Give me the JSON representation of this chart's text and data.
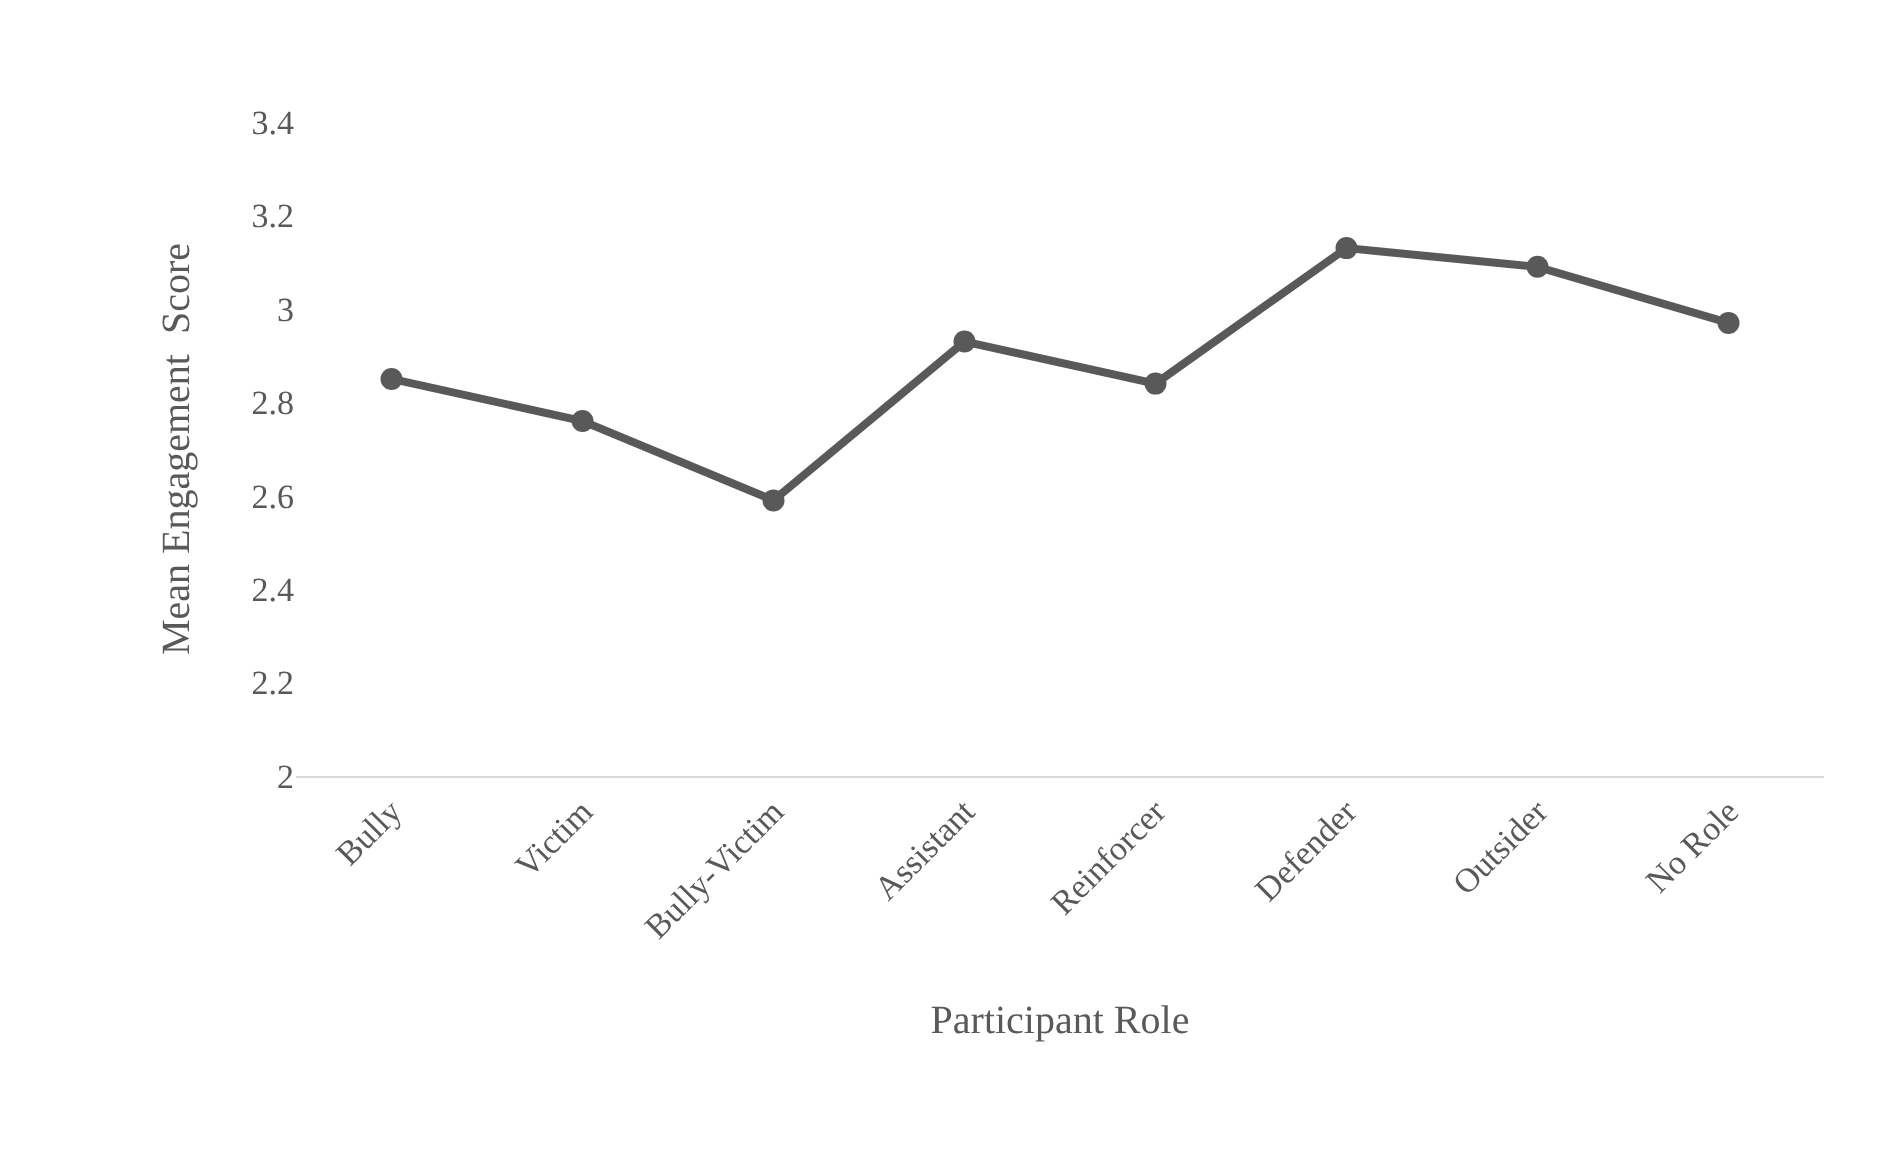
{
  "chart_data": {
    "type": "line",
    "xlabel": "Participant Role",
    "ylabel": "Mean Engagement  Score",
    "categories": [
      "Bully",
      "Victim",
      "Bully-Victim",
      "Assistant",
      "Reinforcer",
      "Defender",
      "Outsider",
      "No Role"
    ],
    "series": [
      {
        "color": "#595959",
        "values": [
          2.85,
          2.76,
          2.59,
          2.93,
          2.84,
          3.13,
          3.09,
          2.97
        ]
      }
    ],
    "ylim": [
      2,
      3.4
    ],
    "yticks": [
      2,
      2.2,
      2.4,
      2.6,
      2.8,
      3,
      3.2,
      3.4
    ],
    "legend": false,
    "marker": "circle",
    "line_style": "solid"
  }
}
